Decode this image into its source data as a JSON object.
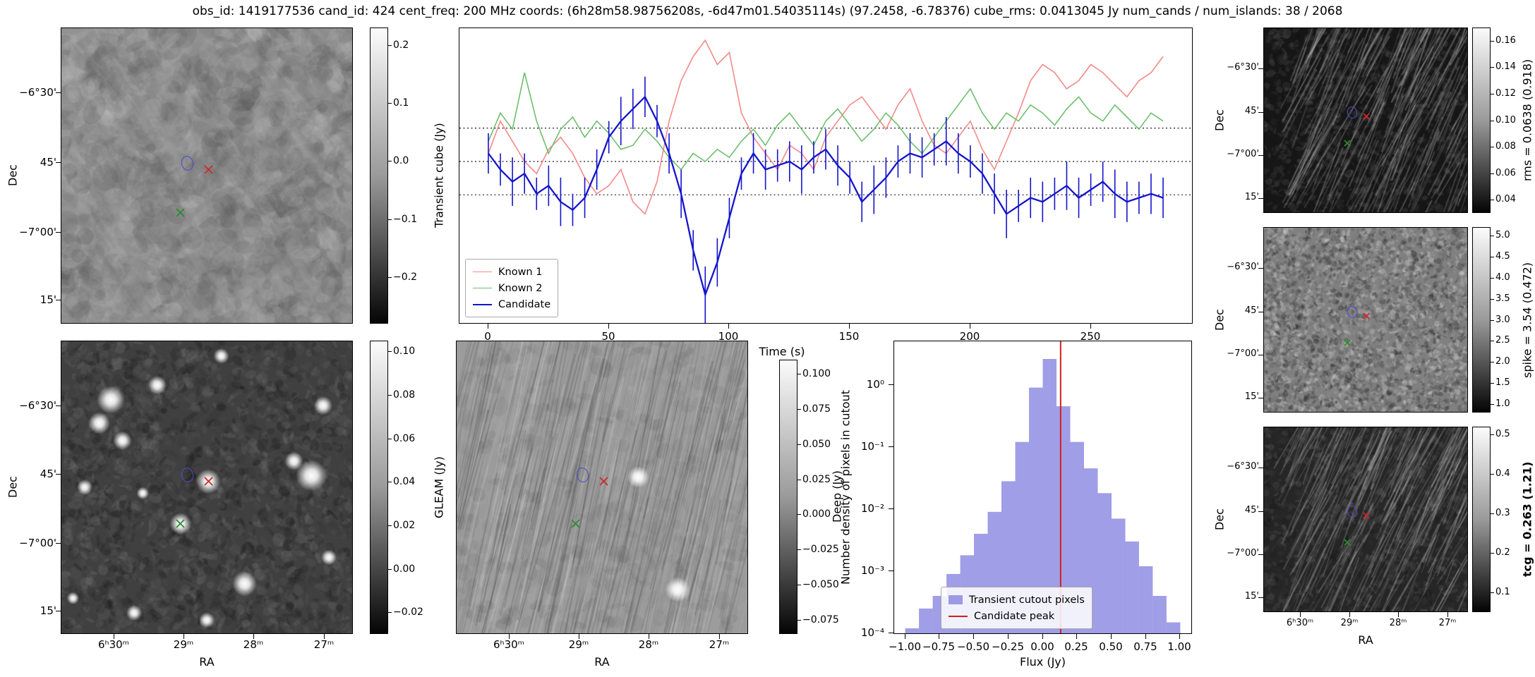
{
  "title": "obs_id: 1419177536 cand_id: 424 cent_freq: 200 MHz coords: (6h28m58.98756208s, -6d47m01.54035114s) (97.2458, -6.78376) cube_rms: 0.0413045 Jy num_cands / num_islands: 38 / 2068",
  "axis": {
    "dec_label": "Dec",
    "ra_label": "RA",
    "dec_ticks": [
      "−6°30'",
      "45'",
      "−7°00'",
      "15'"
    ],
    "ra_ticks": [
      "6ʰ30ᵐ",
      "29ᵐ",
      "28ᵐ",
      "27ᵐ"
    ]
  },
  "markers": {
    "ellipse": {
      "fx": 0.43,
      "fy": 0.455,
      "color": "#4a4ad0"
    },
    "known1_x": {
      "fx": 0.505,
      "fy": 0.48,
      "color": "#cc2b2b"
    },
    "known2_x": {
      "fx": 0.41,
      "fy": 0.625,
      "color": "#2d8a2d"
    }
  },
  "colorbars": {
    "transient": {
      "label": "Transient cube (Jy)",
      "vmax": 0.23,
      "vmin": -0.28,
      "ticks": [
        {
          "v": 0.2,
          "label": "0.2"
        },
        {
          "v": 0.1,
          "label": "0.1"
        },
        {
          "v": 0.0,
          "label": "0.0"
        },
        {
          "v": -0.1,
          "label": "−0.1"
        },
        {
          "v": -0.2,
          "label": "−0.2"
        }
      ]
    },
    "gleam": {
      "label": "GLEAM (Jy)",
      "vmax": 0.105,
      "vmin": -0.03,
      "ticks": [
        {
          "v": 0.1,
          "label": "0.10"
        },
        {
          "v": 0.08,
          "label": "0.08"
        },
        {
          "v": 0.06,
          "label": "0.06"
        },
        {
          "v": 0.04,
          "label": "0.04"
        },
        {
          "v": 0.02,
          "label": "0.02"
        },
        {
          "v": 0.0,
          "label": "0.00"
        },
        {
          "v": -0.02,
          "label": "−0.02"
        }
      ]
    },
    "deep": {
      "label": "Deep (Jy)",
      "vmax": 0.11,
      "vmin": -0.085,
      "ticks": [
        {
          "v": 0.1,
          "label": "0.100"
        },
        {
          "v": 0.075,
          "label": "0.075"
        },
        {
          "v": 0.05,
          "label": "0.050"
        },
        {
          "v": 0.025,
          "label": "0.025"
        },
        {
          "v": 0.0,
          "label": "0.000"
        },
        {
          "v": -0.025,
          "label": "−0.025"
        },
        {
          "v": -0.05,
          "label": "−0.050"
        },
        {
          "v": -0.075,
          "label": "−0.075"
        }
      ]
    },
    "rms": {
      "label": "rms = 0.0638 (0.918)",
      "vmax": 0.17,
      "vmin": 0.03,
      "ticks": [
        {
          "v": 0.16,
          "label": "0.16"
        },
        {
          "v": 0.14,
          "label": "0.14"
        },
        {
          "v": 0.12,
          "label": "0.12"
        },
        {
          "v": 0.1,
          "label": "0.10"
        },
        {
          "v": 0.08,
          "label": "0.08"
        },
        {
          "v": 0.06,
          "label": "0.06"
        },
        {
          "v": 0.04,
          "label": "0.04"
        }
      ]
    },
    "spike": {
      "label": "spike = 3.54 (0.472)",
      "vmax": 5.2,
      "vmin": 0.8,
      "ticks": [
        {
          "v": 5.0,
          "label": "5.0"
        },
        {
          "v": 4.5,
          "label": "4.5"
        },
        {
          "v": 4.0,
          "label": "4.0"
        },
        {
          "v": 3.5,
          "label": "3.5"
        },
        {
          "v": 3.0,
          "label": "3.0"
        },
        {
          "v": 2.5,
          "label": "2.5"
        },
        {
          "v": 2.0,
          "label": "2.0"
        },
        {
          "v": 1.5,
          "label": "1.5"
        },
        {
          "v": 1.0,
          "label": "1.0"
        }
      ]
    },
    "tcg": {
      "label": "tcg = 0.263 (1.21)",
      "bold": true,
      "vmax": 0.52,
      "vmin": 0.05,
      "ticks": [
        {
          "v": 0.5,
          "label": "0.5"
        },
        {
          "v": 0.4,
          "label": "0.4"
        },
        {
          "v": 0.3,
          "label": "0.3"
        },
        {
          "v": 0.2,
          "label": "0.2"
        },
        {
          "v": 0.1,
          "label": "0.1"
        }
      ]
    }
  },
  "chart_data": [
    {
      "type": "line",
      "title": "",
      "xlabel": "Time (s)",
      "ylabel": "",
      "xlim": [
        -12,
        292
      ],
      "ylim": [
        -0.4,
        0.33
      ],
      "xticks": [
        0,
        50,
        100,
        150,
        200,
        250
      ],
      "hlines": [
        0.0826,
        0.0,
        -0.0826
      ],
      "legend_position": "lower left",
      "x": [
        0,
        5,
        10,
        15,
        20,
        25,
        30,
        35,
        40,
        45,
        50,
        55,
        60,
        65,
        70,
        75,
        80,
        85,
        90,
        95,
        100,
        105,
        110,
        115,
        120,
        125,
        130,
        135,
        140,
        145,
        150,
        155,
        160,
        165,
        170,
        175,
        180,
        185,
        190,
        195,
        200,
        205,
        210,
        215,
        220,
        225,
        230,
        235,
        240,
        245,
        250,
        255,
        260,
        265,
        270,
        275,
        280
      ],
      "series": [
        {
          "name": "Known 1",
          "color": "#f48a8a",
          "values": [
            0.02,
            0.1,
            0.05,
            0.0,
            -0.03,
            0.03,
            0.06,
            0.02,
            -0.04,
            -0.08,
            -0.06,
            -0.02,
            -0.1,
            -0.13,
            -0.05,
            0.1,
            0.2,
            0.26,
            0.3,
            0.24,
            0.27,
            0.12,
            0.06,
            0.02,
            -0.02,
            0.04,
            0.02,
            -0.02,
            0.06,
            0.1,
            0.14,
            0.16,
            0.12,
            0.08,
            0.14,
            0.18,
            0.1,
            0.04,
            0.02,
            0.06,
            0.1,
            0.03,
            -0.02,
            0.05,
            0.12,
            0.2,
            0.24,
            0.22,
            0.18,
            0.2,
            0.24,
            0.22,
            0.19,
            0.16,
            0.2,
            0.22,
            0.26
          ]
        },
        {
          "name": "Known 2",
          "color": "#6dbf6d",
          "values": [
            0.05,
            0.12,
            0.08,
            0.22,
            0.1,
            0.02,
            0.08,
            0.11,
            0.06,
            0.1,
            0.07,
            0.03,
            0.04,
            0.08,
            0.05,
            0.01,
            -0.02,
            0.02,
            0.0,
            0.03,
            0.01,
            0.05,
            0.08,
            0.04,
            0.09,
            0.12,
            0.08,
            0.04,
            0.1,
            0.13,
            0.09,
            0.05,
            0.08,
            0.12,
            0.09,
            0.05,
            0.02,
            0.06,
            0.1,
            0.14,
            0.18,
            0.12,
            0.08,
            0.12,
            0.1,
            0.14,
            0.12,
            0.09,
            0.13,
            0.16,
            0.12,
            0.1,
            0.14,
            0.11,
            0.08,
            0.12,
            0.1
          ]
        },
        {
          "name": "Candidate",
          "color": "#1414cc",
          "values": [
            0.02,
            -0.02,
            -0.05,
            -0.03,
            -0.08,
            -0.06,
            -0.1,
            -0.12,
            -0.09,
            -0.02,
            0.06,
            0.1,
            0.13,
            0.16,
            0.1,
            0.02,
            -0.08,
            -0.22,
            -0.33,
            -0.25,
            -0.14,
            -0.03,
            0.02,
            -0.02,
            -0.01,
            0.0,
            -0.02,
            0.01,
            0.03,
            -0.01,
            -0.04,
            -0.1,
            -0.07,
            -0.04,
            0.0,
            0.02,
            0.01,
            0.03,
            0.05,
            0.02,
            0.0,
            -0.03,
            -0.08,
            -0.13,
            -0.11,
            -0.09,
            -0.1,
            -0.08,
            -0.06,
            -0.09,
            -0.07,
            -0.05,
            -0.08,
            -0.1,
            -0.09,
            -0.08,
            -0.09
          ],
          "errors": [
            0.05,
            0.04,
            0.06,
            0.05,
            0.04,
            0.05,
            0.06,
            0.04,
            0.05,
            0.05,
            0.04,
            0.06,
            0.05,
            0.05,
            0.04,
            0.05,
            0.06,
            0.05,
            0.07,
            0.06,
            0.05,
            0.04,
            0.05,
            0.05,
            0.04,
            0.05,
            0.06,
            0.04,
            0.05,
            0.05,
            0.04,
            0.05,
            0.06,
            0.05,
            0.04,
            0.05,
            0.05,
            0.04,
            0.06,
            0.05,
            0.04,
            0.05,
            0.05,
            0.06,
            0.04,
            0.05,
            0.05,
            0.04,
            0.06,
            0.05,
            0.04,
            0.05,
            0.06,
            0.05,
            0.04,
            0.05,
            0.05
          ]
        }
      ]
    },
    {
      "type": "bar",
      "title": "",
      "xlabel": "Flux (Jy)",
      "ylabel": "Number density of pixels in cutout",
      "xlim": [
        -1.08,
        1.08
      ],
      "ylog": true,
      "ylim": [
        0.0001,
        5
      ],
      "bar_color": "#7b78dd",
      "bar_alpha": 0.72,
      "bin_edges": [
        -1.0,
        -0.9,
        -0.8,
        -0.7,
        -0.6,
        -0.5,
        -0.4,
        -0.3,
        -0.2,
        -0.1,
        0.0,
        0.1,
        0.2,
        0.3,
        0.4,
        0.5,
        0.6,
        0.7,
        0.8,
        0.9,
        1.0
      ],
      "densities": [
        0.00012,
        0.00025,
        0.0004,
        0.0009,
        0.0018,
        0.004,
        0.009,
        0.028,
        0.12,
        0.9,
        2.6,
        0.45,
        0.12,
        0.045,
        0.018,
        0.007,
        0.003,
        0.0012,
        0.0004,
        0.00015
      ],
      "vline": {
        "x": 0.13,
        "color": "#d01f1f"
      },
      "xticks": [
        {
          "v": -1.0,
          "label": "−1.00"
        },
        {
          "v": -0.75,
          "label": "−0.75"
        },
        {
          "v": -0.5,
          "label": "−0.50"
        },
        {
          "v": -0.25,
          "label": "−0.25"
        },
        {
          "v": 0.0,
          "label": "0.00"
        },
        {
          "v": 0.25,
          "label": "0.25"
        },
        {
          "v": 0.5,
          "label": "0.50"
        },
        {
          "v": 0.75,
          "label": "0.75"
        },
        {
          "v": 1.0,
          "label": "1.00"
        }
      ],
      "yticks": [
        {
          "v": 1,
          "label": "10⁰"
        },
        {
          "v": 0.1,
          "label": "10⁻¹"
        },
        {
          "v": 0.01,
          "label": "10⁻²"
        },
        {
          "v": 0.001,
          "label": "10⁻³"
        },
        {
          "v": 0.0001,
          "label": "10⁻⁴"
        }
      ],
      "legend": [
        "Transient cutout pixels",
        "Candidate peak"
      ]
    }
  ]
}
